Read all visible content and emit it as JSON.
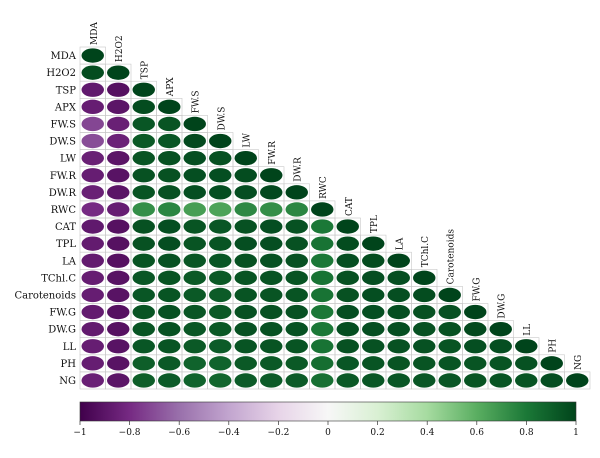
{
  "chart_data": {
    "type": "heatmap",
    "variables": [
      "MDA",
      "H2O2",
      "TSP",
      "APX",
      "FW.S",
      "DW.S",
      "LW",
      "FW.R",
      "DW.R",
      "RWC",
      "CAT",
      "TPL",
      "LA",
      "TChl.C",
      "Carotenoids",
      "FW.G",
      "DW.G",
      "LL",
      "PH",
      "NG"
    ],
    "shape": "ellipse",
    "triangle": "lower",
    "matrix": [
      [
        1
      ],
      [
        0.97,
        1
      ],
      [
        -0.88,
        -0.92,
        1
      ],
      [
        -0.86,
        -0.9,
        0.97,
        1
      ],
      [
        -0.72,
        -0.85,
        0.93,
        0.94,
        1
      ],
      [
        -0.7,
        -0.84,
        0.92,
        0.93,
        0.98,
        1
      ],
      [
        -0.85,
        -0.9,
        0.94,
        0.95,
        0.96,
        0.95,
        1
      ],
      [
        -0.86,
        -0.91,
        0.95,
        0.95,
        0.96,
        0.96,
        0.97,
        1
      ],
      [
        -0.85,
        -0.9,
        0.94,
        0.95,
        0.96,
        0.96,
        0.96,
        0.98,
        1
      ],
      [
        -0.8,
        -0.86,
        0.72,
        0.75,
        0.66,
        0.64,
        0.74,
        0.72,
        0.75,
        1
      ],
      [
        -0.88,
        -0.92,
        0.95,
        0.96,
        0.94,
        0.93,
        0.95,
        0.96,
        0.95,
        0.8,
        1
      ],
      [
        -0.87,
        -0.92,
        0.95,
        0.96,
        0.94,
        0.94,
        0.96,
        0.96,
        0.95,
        0.82,
        0.97,
        1
      ],
      [
        -0.87,
        -0.92,
        0.94,
        0.95,
        0.93,
        0.93,
        0.95,
        0.95,
        0.95,
        0.8,
        0.96,
        0.97,
        1
      ],
      [
        -0.86,
        -0.91,
        0.93,
        0.94,
        0.92,
        0.92,
        0.94,
        0.94,
        0.94,
        0.82,
        0.95,
        0.96,
        0.96,
        1
      ],
      [
        -0.86,
        -0.91,
        0.93,
        0.94,
        0.92,
        0.91,
        0.94,
        0.94,
        0.94,
        0.82,
        0.95,
        0.96,
        0.96,
        0.97,
        1
      ],
      [
        -0.87,
        -0.92,
        0.94,
        0.95,
        0.93,
        0.92,
        0.95,
        0.95,
        0.95,
        0.8,
        0.96,
        0.96,
        0.96,
        0.95,
        0.95,
        1
      ],
      [
        -0.87,
        -0.92,
        0.94,
        0.95,
        0.93,
        0.92,
        0.95,
        0.95,
        0.95,
        0.8,
        0.96,
        0.96,
        0.96,
        0.95,
        0.95,
        0.98,
        1
      ],
      [
        -0.86,
        -0.91,
        0.93,
        0.94,
        0.92,
        0.91,
        0.94,
        0.94,
        0.94,
        0.82,
        0.95,
        0.95,
        0.95,
        0.95,
        0.94,
        0.96,
        0.96,
        1
      ],
      [
        -0.86,
        -0.91,
        0.9,
        0.92,
        0.88,
        0.88,
        0.92,
        0.92,
        0.92,
        0.84,
        0.93,
        0.94,
        0.94,
        0.94,
        0.94,
        0.94,
        0.94,
        0.95,
        1
      ],
      [
        -0.85,
        -0.9,
        0.9,
        0.91,
        0.88,
        0.87,
        0.91,
        0.91,
        0.91,
        0.83,
        0.92,
        0.93,
        0.93,
        0.93,
        0.93,
        0.94,
        0.94,
        0.94,
        0.96,
        1
      ]
    ],
    "colorbar": {
      "min": -1,
      "max": 1,
      "ticks": [
        -1,
        -0.8,
        -0.6,
        -0.4,
        -0.2,
        0,
        0.2,
        0.4,
        0.6,
        0.8,
        1
      ],
      "tick_labels": [
        "−1",
        "−0.8",
        "−0.6",
        "−0.4",
        "−0.2",
        "0",
        "0.2",
        "0.4",
        "0.6",
        "0.8",
        "1"
      ],
      "colors": [
        "#40004b",
        "#762a83",
        "#9970ab",
        "#c2a5cf",
        "#e7d4e8",
        "#f7f7f7",
        "#d9f0d3",
        "#a6dba0",
        "#5aae61",
        "#1b7837",
        "#00441b"
      ]
    },
    "legend": "bottom"
  }
}
